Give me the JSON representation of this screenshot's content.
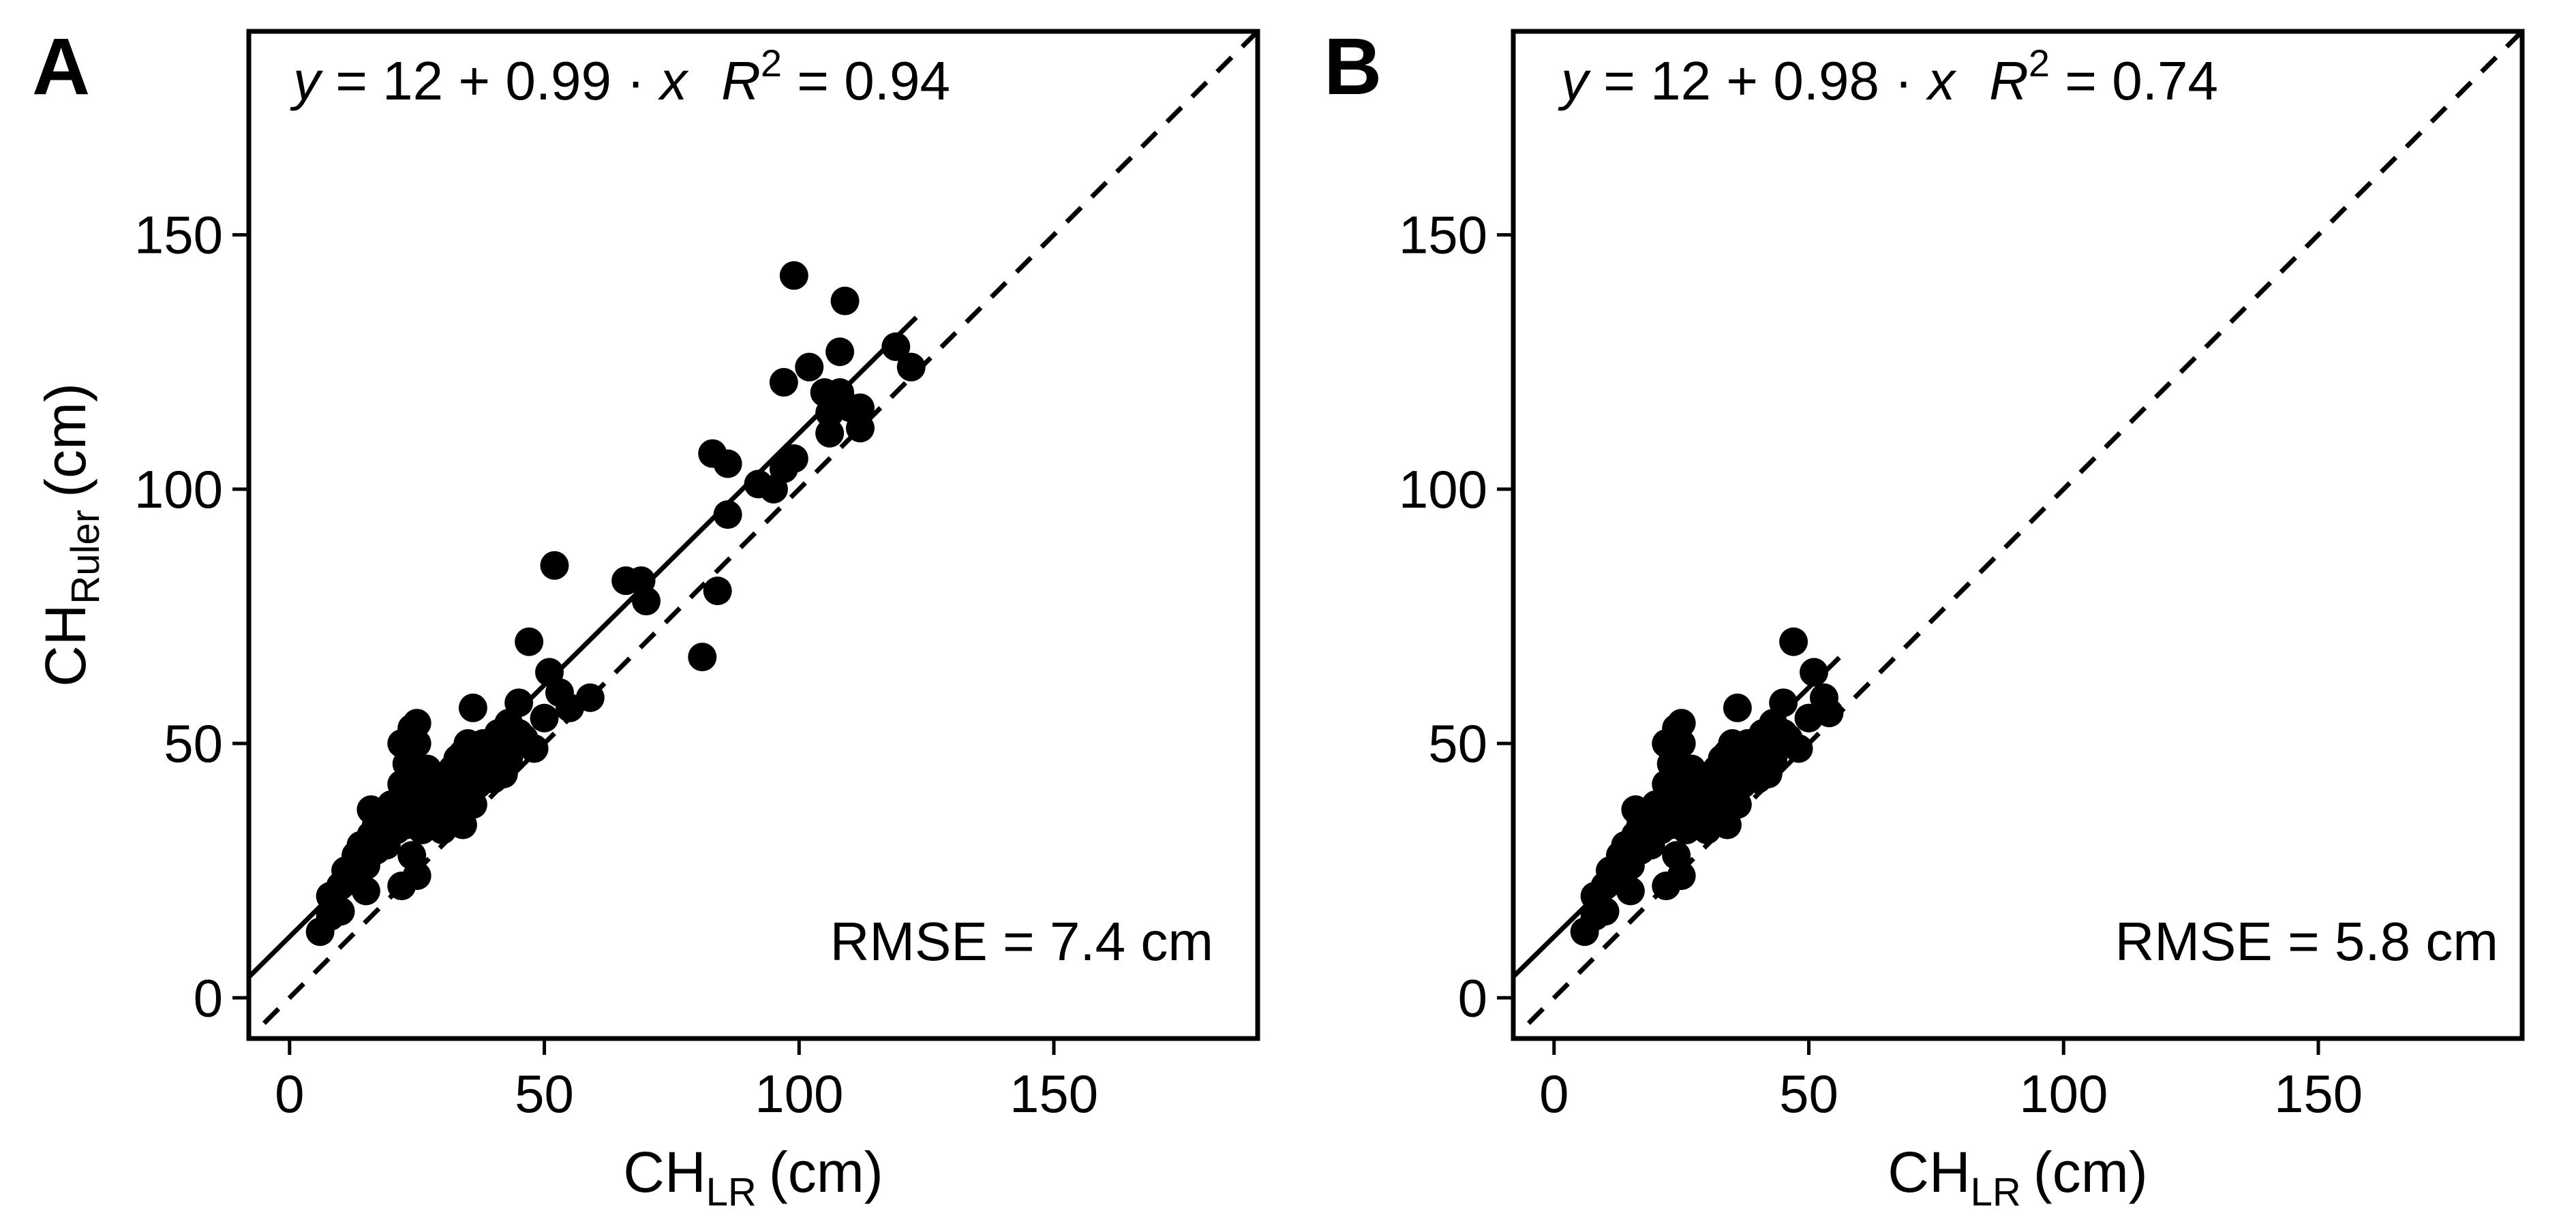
{
  "chart_data": [
    {
      "panel": "A",
      "type": "scatter",
      "xlabel_main": "CH",
      "xlabel_sub": "LR",
      "xlabel_unit": "(cm)",
      "ylabel_main": "CH",
      "ylabel_sub": "Ruler",
      "ylabel_unit": "(cm)",
      "xlim": [
        -8,
        190
      ],
      "ylim": [
        -8,
        190
      ],
      "xticks": [
        0,
        50,
        100,
        150
      ],
      "yticks": [
        0,
        50,
        100,
        150
      ],
      "equation_y": "y",
      "equation_body": " = 12 + 0.99 · ",
      "equation_x": "x",
      "r2_label": "R",
      "r2_exp": "2",
      "r2_value": " = 0.94",
      "rmse_label": "RMSE = 7.4 cm",
      "fit": {
        "intercept": 12,
        "slope": 0.99,
        "x_range": [
          -8,
          123
        ]
      },
      "reference_line": {
        "slope": 1,
        "intercept": 0,
        "x_range": [
          -5,
          190
        ]
      },
      "points": [
        [
          6,
          13
        ],
        [
          8,
          16
        ],
        [
          8,
          20
        ],
        [
          10,
          17
        ],
        [
          10,
          22
        ],
        [
          11,
          25
        ],
        [
          12,
          23
        ],
        [
          13,
          28
        ],
        [
          13,
          25
        ],
        [
          14,
          30
        ],
        [
          15,
          26
        ],
        [
          15,
          21
        ],
        [
          16,
          32
        ],
        [
          16,
          37
        ],
        [
          17,
          29
        ],
        [
          17,
          34
        ],
        [
          18,
          33
        ],
        [
          19,
          30
        ],
        [
          19,
          37
        ],
        [
          20,
          35
        ],
        [
          20,
          38
        ],
        [
          21,
          33
        ],
        [
          21,
          36
        ],
        [
          22,
          42
        ],
        [
          22,
          50
        ],
        [
          22,
          22
        ],
        [
          23,
          38
        ],
        [
          23,
          34
        ],
        [
          23,
          46
        ],
        [
          24,
          40
        ],
        [
          24,
          53
        ],
        [
          24,
          28
        ],
        [
          25,
          36
        ],
        [
          25,
          50
        ],
        [
          25,
          54
        ],
        [
          25,
          24
        ],
        [
          26,
          42
        ],
        [
          26,
          33
        ],
        [
          27,
          38
        ],
        [
          27,
          45
        ],
        [
          28,
          35
        ],
        [
          28,
          41
        ],
        [
          29,
          37
        ],
        [
          29,
          43
        ],
        [
          30,
          40
        ],
        [
          30,
          33
        ],
        [
          31,
          44
        ],
        [
          31,
          38
        ],
        [
          32,
          42
        ],
        [
          32,
          45
        ],
        [
          33,
          36
        ],
        [
          33,
          47
        ],
        [
          34,
          40
        ],
        [
          34,
          48
        ],
        [
          34,
          34
        ],
        [
          35,
          42
        ],
        [
          35,
          46
        ],
        [
          35,
          50
        ],
        [
          36,
          44
        ],
        [
          36,
          57
        ],
        [
          36,
          38
        ],
        [
          37,
          47
        ],
        [
          37,
          42
        ],
        [
          38,
          50
        ],
        [
          38,
          45
        ],
        [
          39,
          48
        ],
        [
          40,
          46
        ],
        [
          40,
          43
        ],
        [
          41,
          52
        ],
        [
          42,
          44
        ],
        [
          42,
          50
        ],
        [
          43,
          47
        ],
        [
          43,
          54
        ],
        [
          44,
          50
        ],
        [
          45,
          58
        ],
        [
          45,
          52
        ],
        [
          46,
          51
        ],
        [
          47,
          70
        ],
        [
          48,
          49
        ],
        [
          50,
          55
        ],
        [
          51,
          64
        ],
        [
          52,
          85
        ],
        [
          53,
          60
        ],
        [
          55,
          57
        ],
        [
          59,
          59
        ],
        [
          66,
          82
        ],
        [
          69,
          82
        ],
        [
          70,
          78
        ],
        [
          81,
          67
        ],
        [
          83,
          107
        ],
        [
          84,
          80
        ],
        [
          86,
          95
        ],
        [
          86,
          105
        ],
        [
          92,
          101
        ],
        [
          95,
          100
        ],
        [
          97,
          104
        ],
        [
          97,
          121
        ],
        [
          99,
          106
        ],
        [
          99,
          142
        ],
        [
          102,
          124
        ],
        [
          105,
          119
        ],
        [
          106,
          111
        ],
        [
          106,
          115
        ],
        [
          108,
          127
        ],
        [
          108,
          119
        ],
        [
          109,
          137
        ],
        [
          110,
          116
        ],
        [
          112,
          112
        ],
        [
          112,
          116
        ],
        [
          119,
          128
        ],
        [
          122,
          124
        ]
      ]
    },
    {
      "panel": "B",
      "type": "scatter",
      "xlabel_main": "CH",
      "xlabel_sub": "LR",
      "xlabel_unit": "(cm)",
      "xlim": [
        -8,
        190
      ],
      "ylim": [
        -8,
        190
      ],
      "xticks": [
        0,
        50,
        100,
        150
      ],
      "yticks": [
        0,
        50,
        100,
        150
      ],
      "equation_y": "y",
      "equation_body": " = 12 + 0.98 · ",
      "equation_x": "x",
      "r2_label": "R",
      "r2_exp": "2",
      "r2_value": " = 0.74",
      "rmse_label": "RMSE = 5.8 cm",
      "fit": {
        "intercept": 12,
        "slope": 0.98,
        "x_range": [
          -8,
          56
        ]
      },
      "reference_line": {
        "slope": 1,
        "intercept": 0,
        "x_range": [
          -5,
          190
        ]
      },
      "points": [
        [
          6,
          13
        ],
        [
          8,
          16
        ],
        [
          8,
          20
        ],
        [
          10,
          17
        ],
        [
          10,
          22
        ],
        [
          11,
          25
        ],
        [
          12,
          23
        ],
        [
          13,
          28
        ],
        [
          13,
          25
        ],
        [
          14,
          30
        ],
        [
          15,
          26
        ],
        [
          15,
          21
        ],
        [
          16,
          32
        ],
        [
          16,
          37
        ],
        [
          17,
          29
        ],
        [
          17,
          34
        ],
        [
          18,
          33
        ],
        [
          19,
          30
        ],
        [
          19,
          37
        ],
        [
          20,
          35
        ],
        [
          20,
          38
        ],
        [
          21,
          33
        ],
        [
          21,
          36
        ],
        [
          22,
          42
        ],
        [
          22,
          50
        ],
        [
          22,
          22
        ],
        [
          23,
          38
        ],
        [
          23,
          34
        ],
        [
          23,
          46
        ],
        [
          24,
          40
        ],
        [
          24,
          53
        ],
        [
          24,
          28
        ],
        [
          25,
          36
        ],
        [
          25,
          50
        ],
        [
          25,
          54
        ],
        [
          25,
          24
        ],
        [
          26,
          42
        ],
        [
          26,
          33
        ],
        [
          27,
          38
        ],
        [
          27,
          45
        ],
        [
          28,
          35
        ],
        [
          28,
          41
        ],
        [
          29,
          37
        ],
        [
          29,
          43
        ],
        [
          30,
          40
        ],
        [
          30,
          33
        ],
        [
          31,
          44
        ],
        [
          31,
          38
        ],
        [
          32,
          42
        ],
        [
          32,
          45
        ],
        [
          33,
          36
        ],
        [
          33,
          47
        ],
        [
          34,
          40
        ],
        [
          34,
          48
        ],
        [
          34,
          34
        ],
        [
          35,
          42
        ],
        [
          35,
          46
        ],
        [
          35,
          50
        ],
        [
          36,
          44
        ],
        [
          36,
          57
        ],
        [
          36,
          38
        ],
        [
          37,
          47
        ],
        [
          37,
          42
        ],
        [
          38,
          50
        ],
        [
          38,
          45
        ],
        [
          39,
          48
        ],
        [
          40,
          46
        ],
        [
          40,
          43
        ],
        [
          41,
          52
        ],
        [
          42,
          44
        ],
        [
          42,
          50
        ],
        [
          43,
          47
        ],
        [
          43,
          54
        ],
        [
          44,
          50
        ],
        [
          45,
          58
        ],
        [
          45,
          52
        ],
        [
          46,
          51
        ],
        [
          47,
          70
        ],
        [
          48,
          49
        ],
        [
          50,
          55
        ],
        [
          51,
          64
        ],
        [
          53,
          59
        ],
        [
          54,
          56
        ]
      ]
    }
  ]
}
